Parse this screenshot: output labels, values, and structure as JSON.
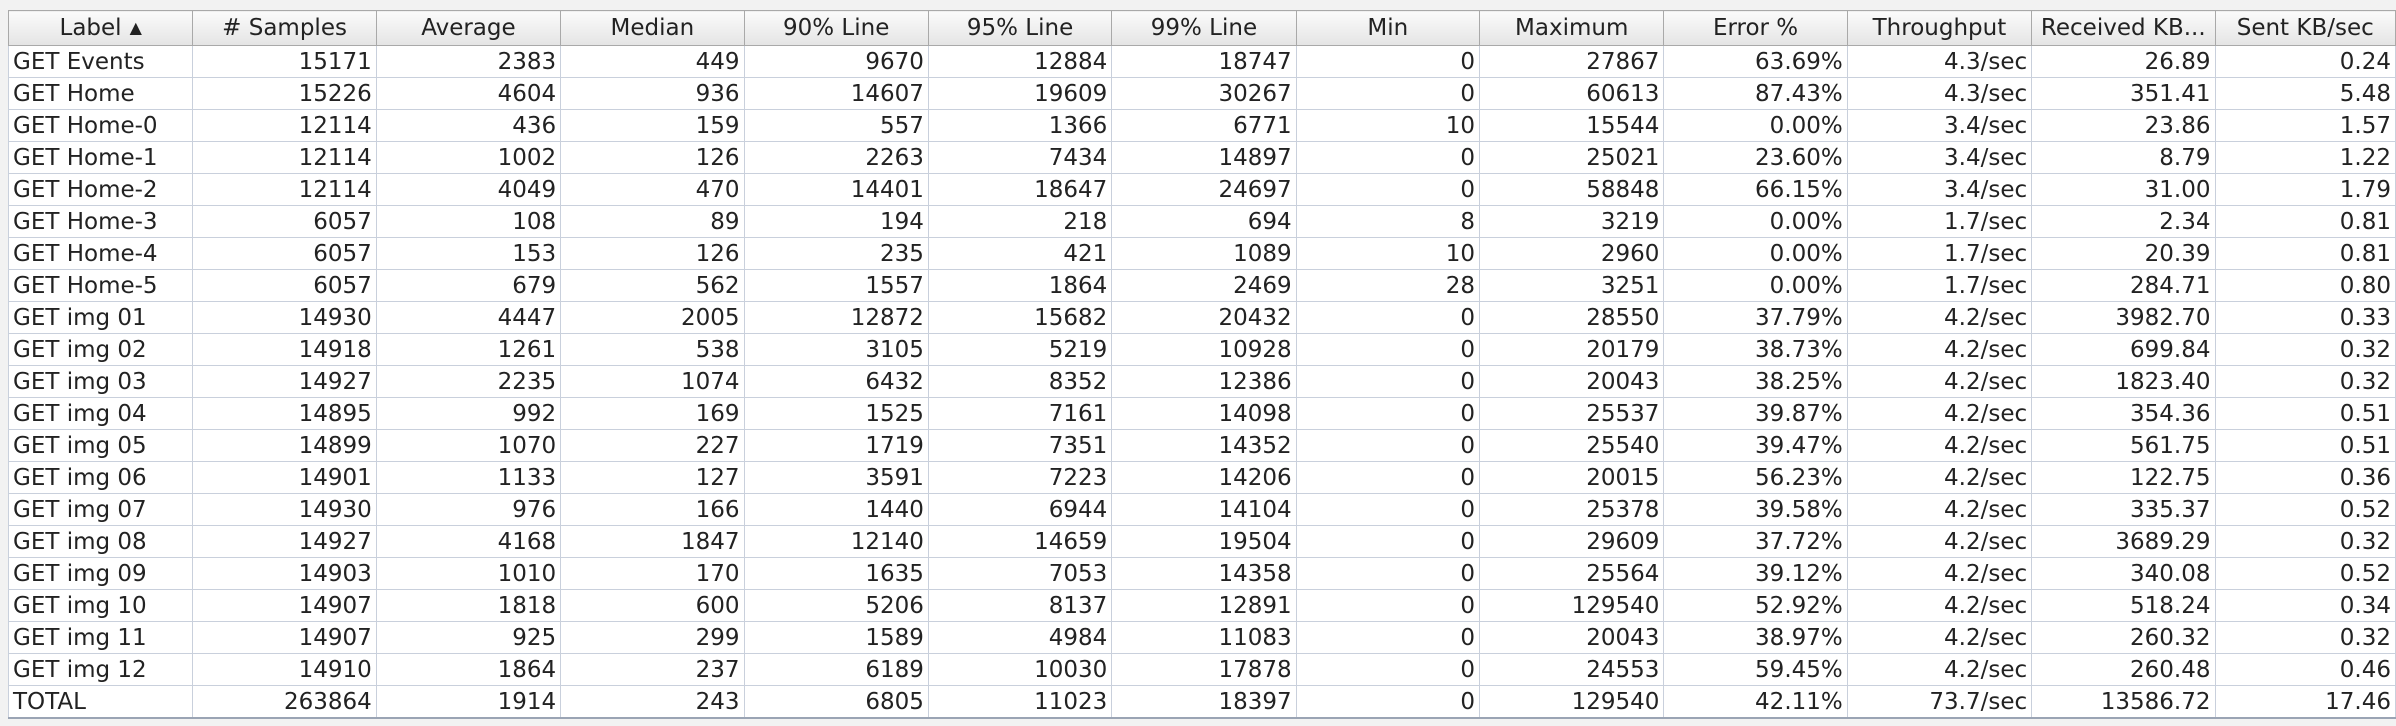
{
  "columns": [
    "Label",
    "# Samples",
    "Average",
    "Median",
    "90% Line",
    "95% Line",
    "99% Line",
    "Min",
    "Maximum",
    "Error %",
    "Throughput",
    "Received KB...",
    "Sent KB/sec"
  ],
  "sort_indicator": "▲",
  "rows": [
    [
      "GET Events",
      "15171",
      "2383",
      "449",
      "9670",
      "12884",
      "18747",
      "0",
      "27867",
      "63.69%",
      "4.3/sec",
      "26.89",
      "0.24"
    ],
    [
      "GET Home",
      "15226",
      "4604",
      "936",
      "14607",
      "19609",
      "30267",
      "0",
      "60613",
      "87.43%",
      "4.3/sec",
      "351.41",
      "5.48"
    ],
    [
      "GET Home-0",
      "12114",
      "436",
      "159",
      "557",
      "1366",
      "6771",
      "10",
      "15544",
      "0.00%",
      "3.4/sec",
      "23.86",
      "1.57"
    ],
    [
      "GET Home-1",
      "12114",
      "1002",
      "126",
      "2263",
      "7434",
      "14897",
      "0",
      "25021",
      "23.60%",
      "3.4/sec",
      "8.79",
      "1.22"
    ],
    [
      "GET Home-2",
      "12114",
      "4049",
      "470",
      "14401",
      "18647",
      "24697",
      "0",
      "58848",
      "66.15%",
      "3.4/sec",
      "31.00",
      "1.79"
    ],
    [
      "GET Home-3",
      "6057",
      "108",
      "89",
      "194",
      "218",
      "694",
      "8",
      "3219",
      "0.00%",
      "1.7/sec",
      "2.34",
      "0.81"
    ],
    [
      "GET Home-4",
      "6057",
      "153",
      "126",
      "235",
      "421",
      "1089",
      "10",
      "2960",
      "0.00%",
      "1.7/sec",
      "20.39",
      "0.81"
    ],
    [
      "GET Home-5",
      "6057",
      "679",
      "562",
      "1557",
      "1864",
      "2469",
      "28",
      "3251",
      "0.00%",
      "1.7/sec",
      "284.71",
      "0.80"
    ],
    [
      "GET img 01",
      "14930",
      "4447",
      "2005",
      "12872",
      "15682",
      "20432",
      "0",
      "28550",
      "37.79%",
      "4.2/sec",
      "3982.70",
      "0.33"
    ],
    [
      "GET img 02",
      "14918",
      "1261",
      "538",
      "3105",
      "5219",
      "10928",
      "0",
      "20179",
      "38.73%",
      "4.2/sec",
      "699.84",
      "0.32"
    ],
    [
      "GET img 03",
      "14927",
      "2235",
      "1074",
      "6432",
      "8352",
      "12386",
      "0",
      "20043",
      "38.25%",
      "4.2/sec",
      "1823.40",
      "0.32"
    ],
    [
      "GET img 04",
      "14895",
      "992",
      "169",
      "1525",
      "7161",
      "14098",
      "0",
      "25537",
      "39.87%",
      "4.2/sec",
      "354.36",
      "0.51"
    ],
    [
      "GET img 05",
      "14899",
      "1070",
      "227",
      "1719",
      "7351",
      "14352",
      "0",
      "25540",
      "39.47%",
      "4.2/sec",
      "561.75",
      "0.51"
    ],
    [
      "GET img 06",
      "14901",
      "1133",
      "127",
      "3591",
      "7223",
      "14206",
      "0",
      "20015",
      "56.23%",
      "4.2/sec",
      "122.75",
      "0.36"
    ],
    [
      "GET img 07",
      "14930",
      "976",
      "166",
      "1440",
      "6944",
      "14104",
      "0",
      "25378",
      "39.58%",
      "4.2/sec",
      "335.37",
      "0.52"
    ],
    [
      "GET img 08",
      "14927",
      "4168",
      "1847",
      "12140",
      "14659",
      "19504",
      "0",
      "29609",
      "37.72%",
      "4.2/sec",
      "3689.29",
      "0.32"
    ],
    [
      "GET img 09",
      "14903",
      "1010",
      "170",
      "1635",
      "7053",
      "14358",
      "0",
      "25564",
      "39.12%",
      "4.2/sec",
      "340.08",
      "0.52"
    ],
    [
      "GET img 10",
      "14907",
      "1818",
      "600",
      "5206",
      "8137",
      "12891",
      "0",
      "129540",
      "52.92%",
      "4.2/sec",
      "518.24",
      "0.34"
    ],
    [
      "GET img 11",
      "14907",
      "925",
      "299",
      "1589",
      "4984",
      "11083",
      "0",
      "20043",
      "38.97%",
      "4.2/sec",
      "260.32",
      "0.32"
    ],
    [
      "GET img 12",
      "14910",
      "1864",
      "237",
      "6189",
      "10030",
      "17878",
      "0",
      "24553",
      "59.45%",
      "4.2/sec",
      "260.48",
      "0.46"
    ],
    [
      "TOTAL",
      "263864",
      "1914",
      "243",
      "6805",
      "11023",
      "18397",
      "0",
      "129540",
      "42.11%",
      "73.7/sec",
      "13586.72",
      "17.46"
    ]
  ]
}
